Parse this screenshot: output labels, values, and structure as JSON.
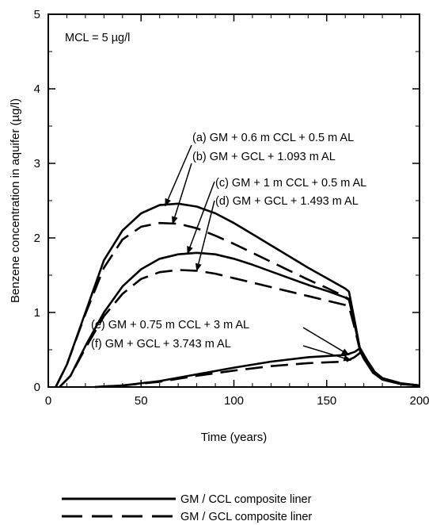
{
  "chart_data": {
    "type": "line",
    "title": "",
    "xlabel": "Time (years)",
    "ylabel": "Benzene concentration in aquifer (µg/l)",
    "xlim": [
      0,
      200
    ],
    "ylim": [
      0,
      5
    ],
    "xticks": [
      0,
      50,
      100,
      150,
      200
    ],
    "yticks": [
      0,
      1,
      2,
      3,
      4,
      5
    ],
    "grid": false,
    "inset_note": "MCL = 5 µg/l",
    "series": [
      {
        "label": "(a) GM + 0.6 m CCL + 0.5 m AL",
        "style": "solid",
        "x": [
          4,
          10,
          20,
          30,
          40,
          50,
          60,
          70,
          80,
          90,
          100,
          110,
          120,
          130,
          140,
          150,
          160,
          162,
          165,
          168,
          170,
          175,
          180,
          190,
          200
        ],
        "y": [
          0,
          0.3,
          1.0,
          1.7,
          2.1,
          2.33,
          2.44,
          2.46,
          2.42,
          2.33,
          2.2,
          2.05,
          1.9,
          1.75,
          1.6,
          1.46,
          1.32,
          1.28,
          0.9,
          0.5,
          0.4,
          0.2,
          0.1,
          0.04,
          0.02
        ]
      },
      {
        "label": "(b) GM + GCL + 1.093 m AL",
        "style": "dashed",
        "x": [
          4,
          10,
          20,
          30,
          40,
          50,
          60,
          70,
          80,
          90,
          100,
          110,
          120,
          130,
          140,
          150,
          160,
          162,
          165,
          168,
          170,
          175,
          180,
          190,
          200
        ],
        "y": [
          0,
          0.3,
          0.98,
          1.6,
          1.98,
          2.15,
          2.2,
          2.19,
          2.13,
          2.03,
          1.92,
          1.8,
          1.68,
          1.56,
          1.44,
          1.33,
          1.21,
          1.18,
          0.85,
          0.48,
          0.38,
          0.19,
          0.1,
          0.04,
          0.02
        ]
      },
      {
        "label": "(c) GM + 1 m CCL + 0.5 m AL",
        "style": "solid",
        "x": [
          6,
          12,
          20,
          30,
          40,
          50,
          60,
          70,
          80,
          90,
          100,
          110,
          120,
          130,
          140,
          150,
          160,
          162,
          165,
          168,
          170,
          175,
          180,
          190,
          200
        ],
        "y": [
          0,
          0.15,
          0.55,
          1.0,
          1.35,
          1.58,
          1.72,
          1.78,
          1.8,
          1.78,
          1.72,
          1.64,
          1.55,
          1.46,
          1.37,
          1.29,
          1.2,
          1.17,
          0.85,
          0.5,
          0.4,
          0.2,
          0.1,
          0.04,
          0.02
        ]
      },
      {
        "label": "(d) GM + GCL + 1.493 m AL",
        "style": "dashed",
        "x": [
          6,
          12,
          20,
          30,
          40,
          50,
          60,
          70,
          80,
          90,
          100,
          110,
          120,
          130,
          140,
          150,
          160,
          162,
          165,
          168,
          170,
          175,
          180,
          190,
          200
        ],
        "y": [
          0,
          0.15,
          0.52,
          0.95,
          1.25,
          1.45,
          1.54,
          1.57,
          1.56,
          1.52,
          1.46,
          1.4,
          1.34,
          1.28,
          1.22,
          1.16,
          1.1,
          1.08,
          0.8,
          0.48,
          0.38,
          0.19,
          0.1,
          0.04,
          0.02
        ]
      },
      {
        "label": "(e) GM + 0.75 m CCL + 3 m AL",
        "style": "solid",
        "x": [
          25,
          40,
          60,
          80,
          100,
          120,
          140,
          160,
          165,
          168,
          172,
          176,
          180,
          190,
          200
        ],
        "y": [
          0,
          0.02,
          0.08,
          0.17,
          0.26,
          0.34,
          0.4,
          0.43,
          0.47,
          0.52,
          0.35,
          0.2,
          0.12,
          0.05,
          0.02
        ]
      },
      {
        "label": "(f) GM + GCL + 3.743 m AL",
        "style": "dashed",
        "x": [
          25,
          40,
          60,
          80,
          100,
          120,
          140,
          160,
          165,
          168,
          172,
          176,
          180,
          190,
          200
        ],
        "y": [
          0,
          0.02,
          0.07,
          0.15,
          0.22,
          0.28,
          0.32,
          0.34,
          0.4,
          0.46,
          0.33,
          0.19,
          0.11,
          0.05,
          0.02
        ]
      }
    ],
    "annotations": [
      {
        "label": "(a) GM + 0.6 m CCL + 0.5 m AL",
        "target": [
          63,
          2.43
        ]
      },
      {
        "label": "(b) GM + GCL + 1.093 m AL",
        "target": [
          67,
          2.19
        ]
      },
      {
        "label": "(c) GM + 1 m CCL + 0.5 m AL",
        "target": [
          75,
          1.79
        ]
      },
      {
        "label": "(d) GM + GCL + 1.493 m AL",
        "target": [
          80,
          1.56
        ]
      },
      {
        "label": "(e) GM + 0.75 m CCL + 3 m AL",
        "target": [
          162,
          0.43
        ]
      },
      {
        "label": "(f) GM + GCL + 3.743 m AL",
        "target": [
          163,
          0.36
        ]
      }
    ],
    "legend": {
      "placement": "bottom",
      "entries": [
        {
          "label": "GM / CCL composite liner",
          "style": "solid"
        },
        {
          "label": "GM / GCL composite liner",
          "style": "dashed"
        }
      ]
    }
  }
}
